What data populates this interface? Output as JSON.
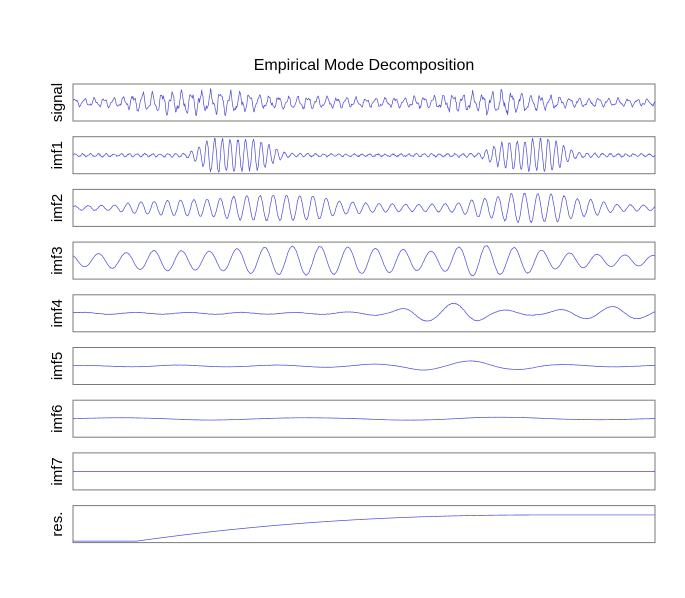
{
  "chart_data": {
    "type": "line",
    "title": "Empirical Mode Decomposition",
    "line_color": "#4a4adb",
    "frame_color": "#7a7a7a",
    "grid": false,
    "legend": "none",
    "n_samples": 1000,
    "x_range": [
      0,
      1000
    ],
    "panels": [
      {
        "name": "signal",
        "ylim": [
          -1.2,
          1.2
        ],
        "noise": 0.18,
        "envelope_levels": [
          0.35,
          0.4,
          0.9,
          1.0,
          1.0,
          0.6,
          0.55,
          0.45,
          0.4,
          0.5,
          0.85,
          1.0,
          0.7,
          0.4,
          0.35,
          0.3
        ],
        "components": [
          {
            "amp": 1.0,
            "cycles": 60,
            "phase": 0.3
          },
          {
            "amp": 0.35,
            "cycles": 140,
            "phase": 1.2
          }
        ]
      },
      {
        "name": "imf1",
        "ylim": [
          -1.0,
          1.0
        ],
        "noise": 0.12,
        "envelope_levels": [
          0.08,
          0.08,
          0.08,
          0.1,
          1.0,
          0.85,
          0.1,
          0.08,
          0.07,
          0.07,
          0.08,
          0.1,
          0.8,
          0.95,
          0.12,
          0.08,
          0.08
        ],
        "components": [
          {
            "amp": 1.0,
            "cycles": 75,
            "phase": 0.0
          }
        ]
      },
      {
        "name": "imf2",
        "ylim": [
          -1.0,
          1.0
        ],
        "noise": 0.06,
        "envelope_levels": [
          0.12,
          0.15,
          0.35,
          0.45,
          0.5,
          0.7,
          0.75,
          0.7,
          0.35,
          0.25,
          0.2,
          0.25,
          0.55,
          0.85,
          0.8,
          0.5,
          0.2,
          0.15
        ],
        "components": [
          {
            "amp": 1.0,
            "cycles": 44,
            "phase": 0.7
          }
        ]
      },
      {
        "name": "imf3",
        "ylim": [
          -1.0,
          1.0
        ],
        "noise": 0.03,
        "envelope_levels": [
          0.35,
          0.45,
          0.6,
          0.55,
          0.75,
          0.85,
          0.8,
          0.7,
          0.55,
          0.9,
          0.75,
          0.45,
          0.35,
          0.3
        ],
        "components": [
          {
            "amp": 1.0,
            "cycles": 21,
            "phase": 2.1
          }
        ]
      },
      {
        "name": "imf4",
        "ylim": [
          -1.0,
          1.0
        ],
        "noise": 0.04,
        "envelope_levels": [
          0.06,
          0.06,
          0.05,
          0.05,
          0.06,
          0.05,
          0.05,
          0.08,
          0.12,
          0.45,
          0.6,
          0.2,
          0.1,
          0.3,
          0.4,
          0.25
        ],
        "components": [
          {
            "amp": 1.0,
            "cycles": 11,
            "phase": 0.4
          }
        ]
      },
      {
        "name": "imf5",
        "ylim": [
          -1.0,
          1.0
        ],
        "noise": 0.02,
        "envelope_levels": [
          0.02,
          0.04,
          0.06,
          0.05,
          0.05,
          0.06,
          0.08,
          0.12,
          0.25,
          0.3,
          0.2,
          0.08,
          0.05,
          0.04
        ],
        "components": [
          {
            "amp": 1.0,
            "cycles": 6,
            "phase": 1.0
          }
        ]
      },
      {
        "name": "imf6",
        "ylim": [
          -1.0,
          1.0
        ],
        "noise": 0.01,
        "envelope_levels": [
          0.04,
          0.06,
          0.08,
          0.06,
          0.05,
          0.08,
          0.1,
          0.08,
          0.06,
          0.05
        ],
        "components": [
          {
            "amp": 1.0,
            "cycles": 3,
            "phase": 0.2
          }
        ]
      },
      {
        "name": "imf7",
        "ylim": [
          -1.0,
          1.0
        ],
        "noise": 0.0,
        "envelope_levels": [
          0.0,
          0.0
        ],
        "components": []
      },
      {
        "name": "res.",
        "ylim": [
          0,
          1.3
        ],
        "trend": "rising-saturating",
        "trend_start": 0.11,
        "trend_end": 0.81,
        "trend_max": 1.0,
        "noise": 0.0,
        "envelope_levels": [
          0.0,
          0.0
        ],
        "components": []
      }
    ]
  }
}
